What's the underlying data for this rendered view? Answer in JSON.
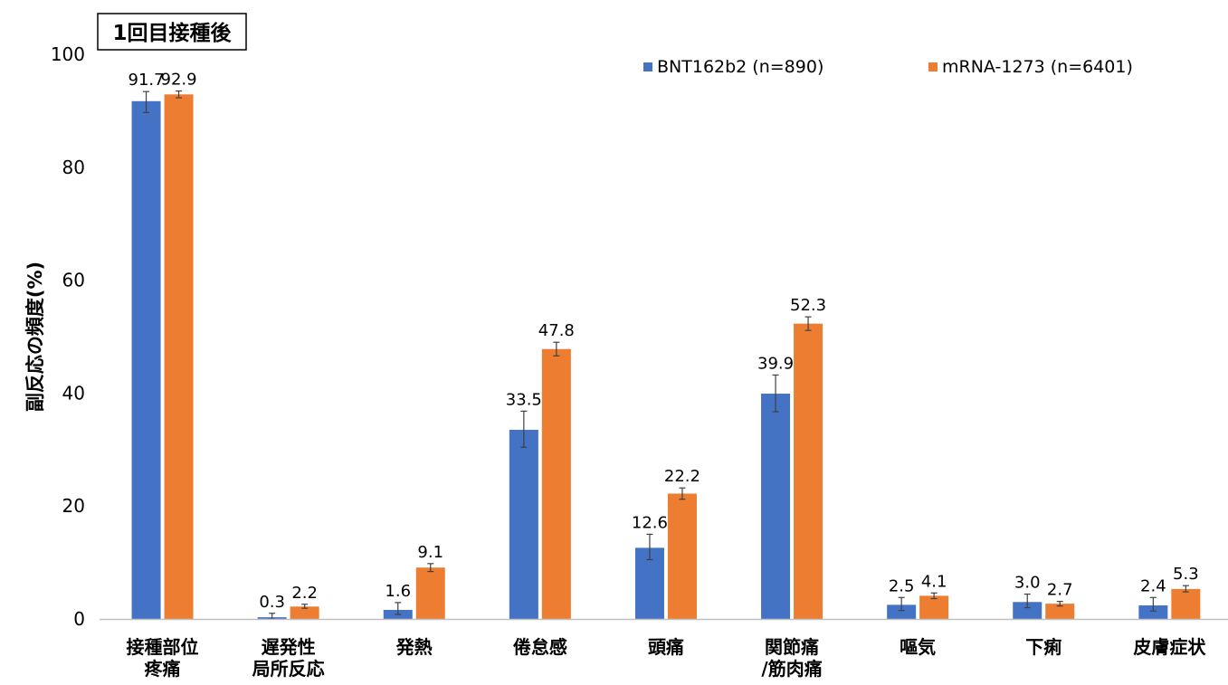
{
  "colors": {
    "series1": "#4472C4",
    "series2": "#ED7D31",
    "axis": "#BFBFBF",
    "text": "#000000",
    "error_bar": "#404040"
  },
  "chart_data": {
    "type": "bar",
    "title": "1回目接種後",
    "ylabel": "副反応の頻度(%)",
    "xlabel": "",
    "ylim": [
      0,
      100
    ],
    "yticks": [
      0,
      20,
      40,
      60,
      80,
      100
    ],
    "grid": false,
    "legend": "top-right",
    "categories": [
      [
        "接種部位",
        "疼痛"
      ],
      [
        "遅発性",
        "局所反応"
      ],
      [
        "発熱"
      ],
      [
        "倦怠感"
      ],
      [
        "頭痛"
      ],
      [
        "関節痛",
        "/筋肉痛"
      ],
      [
        "嘔気"
      ],
      [
        "下痢"
      ],
      [
        "皮膚症状"
      ]
    ],
    "series": [
      {
        "name": "BNT162b2 (n=890)",
        "values": [
          91.7,
          0.3,
          1.6,
          33.5,
          12.6,
          39.9,
          2.5,
          3.0,
          2.4
        ],
        "labels": [
          "91.7",
          "0.3",
          "1.6",
          "33.5",
          "12.6",
          "39.9",
          "2.5",
          "3.0",
          "2.4"
        ],
        "err_low": [
          89.7,
          0.0,
          0.8,
          30.4,
          10.5,
          36.7,
          1.5,
          2.0,
          1.4
        ],
        "err_high": [
          93.4,
          1.0,
          2.9,
          36.8,
          15.0,
          43.2,
          3.8,
          4.4,
          3.8
        ]
      },
      {
        "name": "mRNA-1273 (n=6401)",
        "values": [
          92.9,
          2.2,
          9.1,
          47.8,
          22.2,
          52.3,
          4.1,
          2.7,
          5.3
        ],
        "labels": [
          "92.9",
          "2.2",
          "9.1",
          "47.8",
          "22.2",
          "52.3",
          "4.1",
          "2.7",
          "5.3"
        ],
        "err_low": [
          92.3,
          1.9,
          8.4,
          46.6,
          21.2,
          51.1,
          3.6,
          2.3,
          4.8
        ],
        "err_high": [
          93.5,
          2.6,
          9.8,
          49.0,
          23.2,
          53.5,
          4.6,
          3.1,
          5.9
        ]
      }
    ]
  }
}
